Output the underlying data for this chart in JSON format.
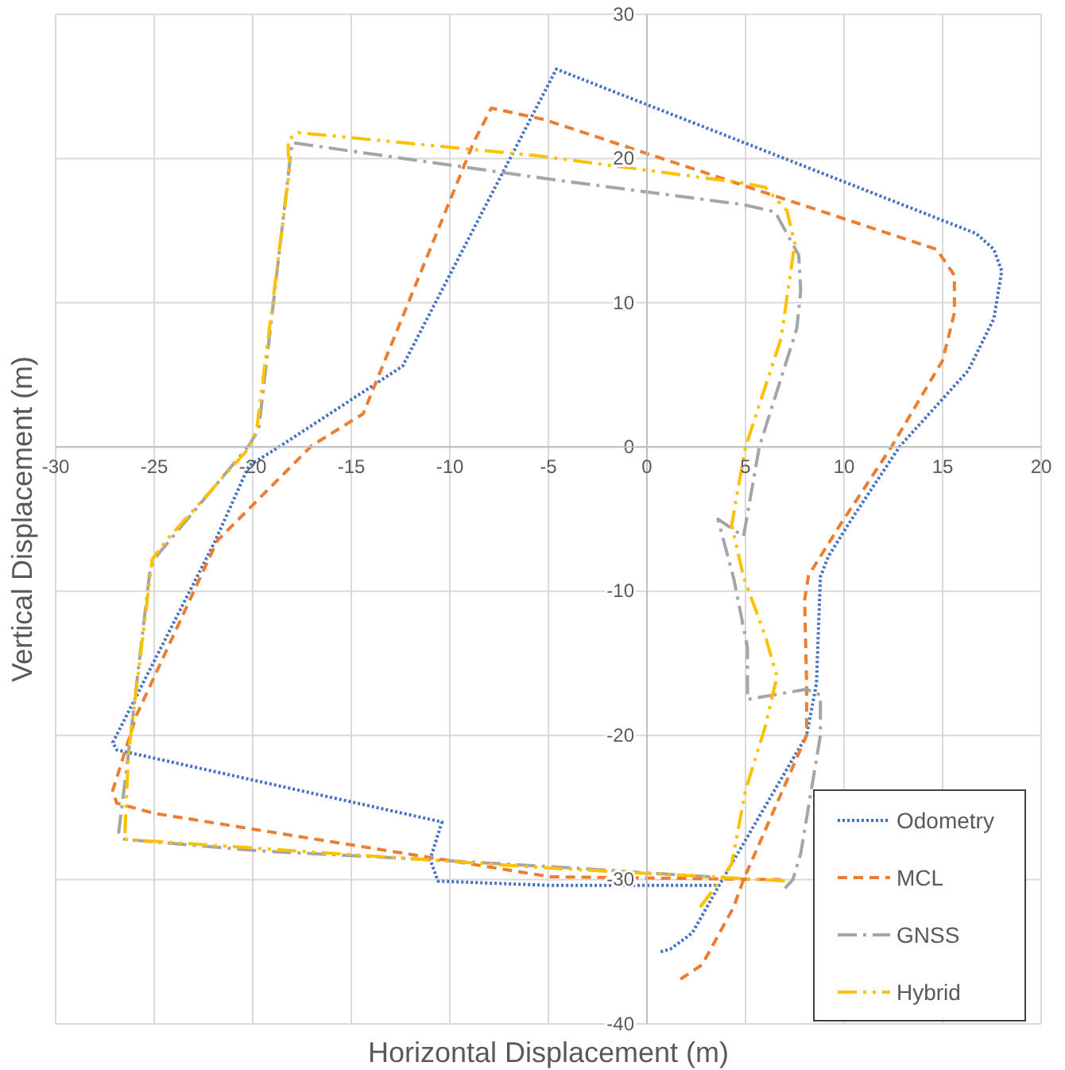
{
  "chart_data": {
    "type": "line",
    "xlabel": "Horizontal Displacement (m)",
    "ylabel": "Vertical Displacement (m)",
    "xlim": [
      -30,
      20
    ],
    "xticks": [
      -30,
      -25,
      -20,
      -15,
      -10,
      -5,
      0,
      5,
      10,
      15,
      20
    ],
    "ylim": [
      -40,
      30
    ],
    "yticks": [
      -40,
      -30,
      -20,
      -10,
      0,
      10,
      20,
      30
    ],
    "grid": true,
    "legend": "bottom right",
    "marker": "none",
    "series": [
      {
        "name": "Odometry",
        "color": "#4472c4",
        "line_style": "dotted",
        "x": [
          0.7,
          1.2,
          2.3,
          3.7,
          8.1,
          8.6,
          8.8,
          9.2,
          10.2,
          12.8,
          16.3,
          17.6,
          18,
          17.6,
          16.7,
          -4.6,
          -12.4,
          -18.9,
          -20.2,
          -21.9,
          -27.1,
          -26.9,
          -10.4,
          -11,
          -10.6,
          -4.9,
          3.7
        ],
        "values": [
          -35,
          -34.8,
          -33.7,
          -30.3,
          -20,
          -16.4,
          -9,
          -7.6,
          -5.4,
          0,
          5.3,
          8.9,
          12.2,
          13.7,
          14.8,
          26.2,
          5.6,
          -0.2,
          -1.3,
          -6.5,
          -20.5,
          -21,
          -26,
          -28.6,
          -30.1,
          -30.4,
          -30.4
        ]
      },
      {
        "name": "MCL",
        "color": "#ed7d31",
        "line_style": "dashed",
        "x": [
          1.7,
          2.8,
          4.4,
          4.9,
          8.1,
          8.1,
          8,
          8.2,
          9.8,
          12.4,
          15,
          15.6,
          15.6,
          14.7,
          -5.2,
          -7.9,
          -8.8,
          -14.4,
          -17,
          -21.8,
          -25.9,
          -27.1,
          -26.9,
          -25,
          -4.9,
          6.8
        ],
        "values": [
          -36.9,
          -35.9,
          -31.9,
          -30,
          -20,
          -16.4,
          -10.6,
          -8.9,
          -5.4,
          0,
          6,
          9.3,
          11.9,
          13.7,
          22.7,
          23.5,
          21.1,
          2.3,
          0.1,
          -6.5,
          -18.6,
          -23.8,
          -24.7,
          -25.4,
          -29.8,
          -30
        ]
      },
      {
        "name": "GNSS",
        "color": "#a5a5a5",
        "line_style": "dashdot",
        "x": [
          3.2,
          -4.9,
          -11.2,
          -19.7,
          -26.5,
          -26.8,
          -26.3,
          -25.2,
          -24.9,
          -20.2,
          -19.7,
          -18.1,
          -18,
          -5.1,
          4.9,
          6.5,
          7.7,
          7.8,
          7.6,
          5.7,
          4.9,
          3.6,
          4.4,
          5.1,
          5.1,
          8.1,
          8.8,
          8.8,
          7.8,
          7.4,
          7
        ],
        "values": [
          -29.8,
          -29.1,
          -28.6,
          -28,
          -27.2,
          -26.7,
          -21.2,
          -8.4,
          -7.6,
          0.1,
          1.2,
          20,
          21.1,
          18.6,
          16.8,
          16.3,
          13.3,
          10.8,
          8.2,
          0,
          -6.2,
          -5,
          -9.1,
          -13.9,
          -17.5,
          -16.8,
          -17.2,
          -20,
          -28.2,
          -30,
          -30.6
        ]
      },
      {
        "name": "Hybrid",
        "color": "#ffc000",
        "line_style": "dashdotdot",
        "x": [
          2.7,
          3.7,
          4.3,
          5,
          6,
          6.6,
          6,
          4.9,
          4.3,
          5,
          6.8,
          7.5,
          7.1,
          6,
          4.9,
          -5.6,
          -17.7,
          -18.2,
          -18.2,
          -18.1,
          -19.8,
          -20.2,
          -24.4,
          -25.1,
          -26.3,
          -26.5,
          -4.9,
          7.3
        ],
        "values": [
          -31.9,
          -30.1,
          -28.9,
          -23.8,
          -19.4,
          -15.9,
          -13.1,
          -9,
          -5.4,
          0,
          7.5,
          14.1,
          16.4,
          18,
          18.3,
          20.2,
          21.8,
          21.3,
          20.3,
          19.6,
          1.2,
          -0.1,
          -6.5,
          -7.8,
          -21.2,
          -27.2,
          -29.2,
          -30.1
        ]
      }
    ]
  }
}
